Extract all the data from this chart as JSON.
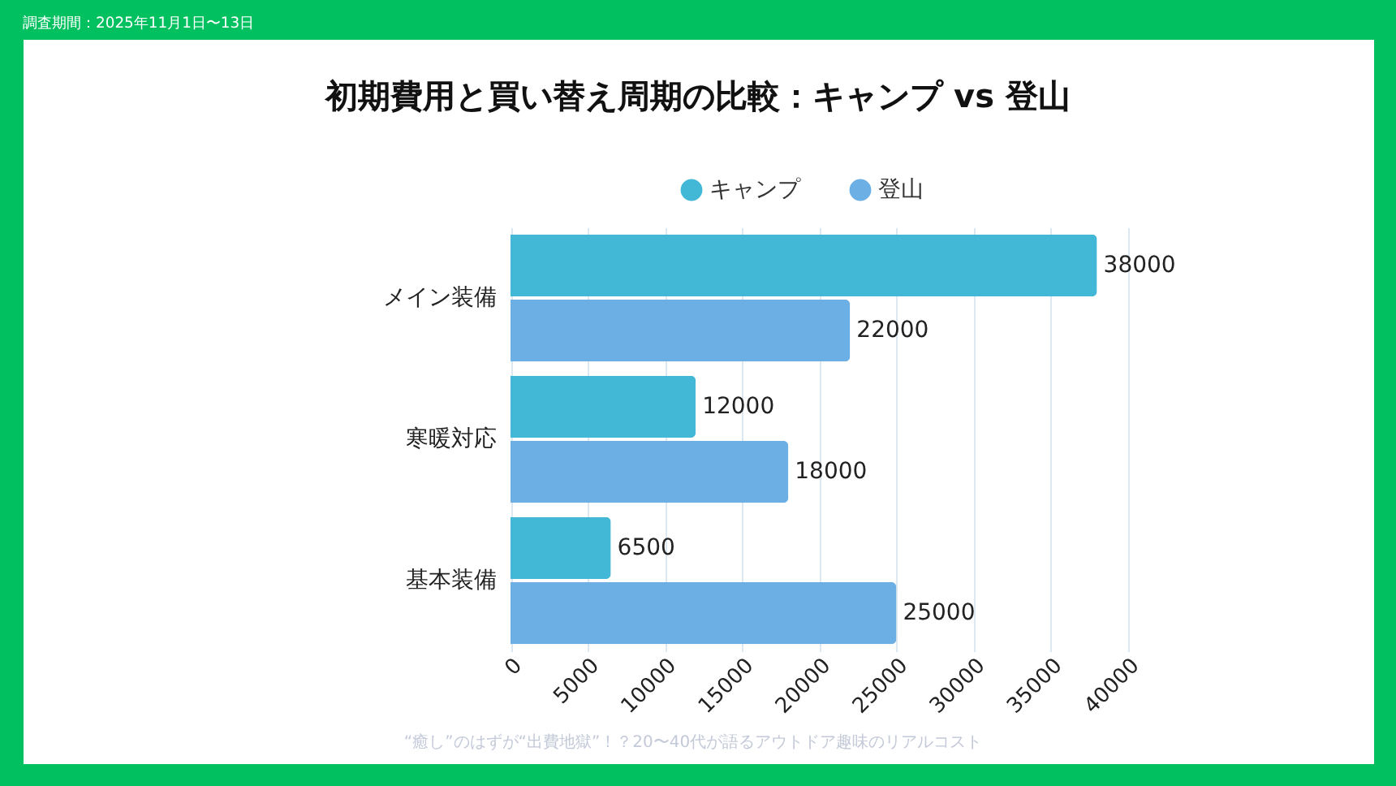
{
  "chart_data": {
    "type": "bar",
    "orientation": "horizontal",
    "title": "初期費用と買い替え周期の比較：キャンプ vs 登山",
    "categories": [
      "メイン装備",
      "寒暖対応",
      "基本装備"
    ],
    "series": [
      {
        "name": "キャンプ",
        "color": "#43b7d6",
        "values": [
          38000,
          12000,
          6500
        ]
      },
      {
        "name": "登山",
        "color": "#6cafe4",
        "values": [
          22000,
          18000,
          25000
        ]
      }
    ],
    "xlim": [
      0,
      40000
    ],
    "xticks": [
      0,
      5000,
      10000,
      15000,
      20000,
      25000,
      30000,
      35000,
      40000
    ],
    "grid": "x",
    "legend": "top",
    "data_labels": true,
    "annotations": [
      "調査期間：2025年11月1日〜13日",
      "“癒し”のはずが“出費地獄”！？20〜40代が語るアウトドア趣味のリアルコスト"
    ]
  }
}
